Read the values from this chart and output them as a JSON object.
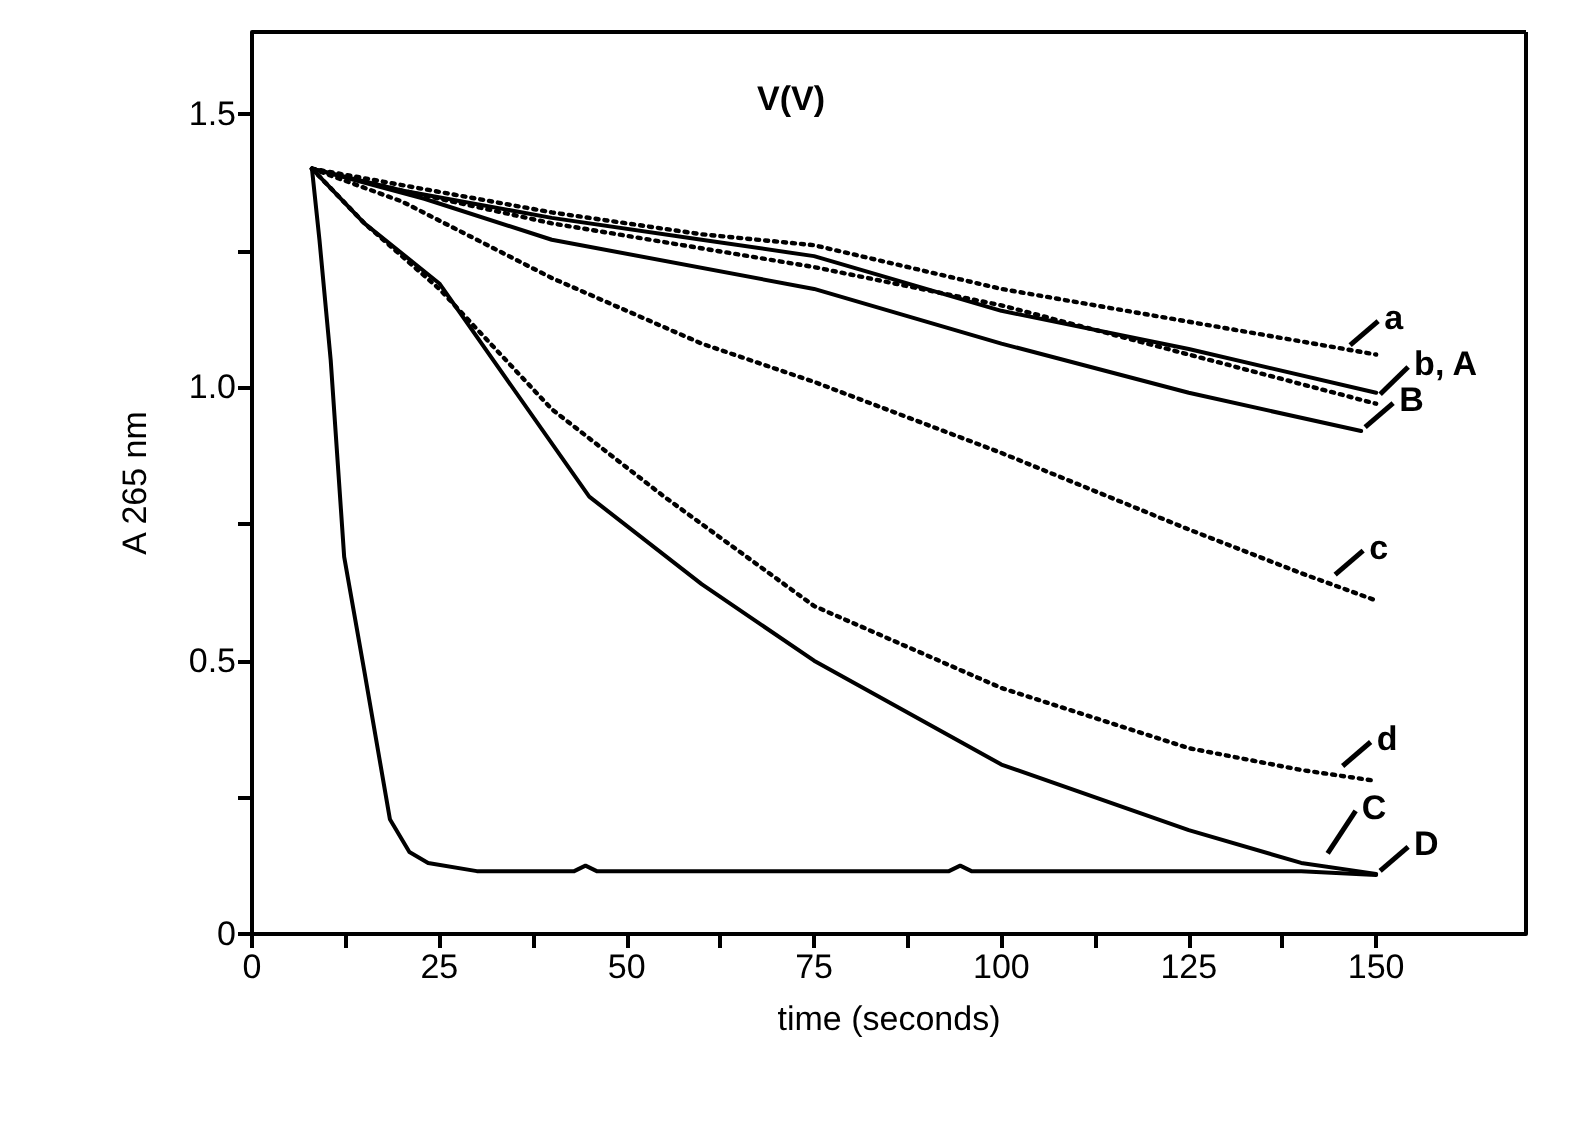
{
  "chart_data": {
    "type": "line",
    "title": "V(V)",
    "xlabel": "time (seconds)",
    "ylabel": "A 265 nm",
    "xlim": [
      0,
      170
    ],
    "xticks": [
      0,
      {
        "value": 12.5,
        "label": null
      },
      25,
      {
        "value": 37.5,
        "label": null
      },
      50,
      {
        "value": 62.5,
        "label": null
      },
      75,
      {
        "value": 87.5,
        "label": null
      },
      100,
      {
        "value": 112.5,
        "label": null
      },
      125,
      {
        "value": 137.5,
        "label": null
      },
      150
    ],
    "ylim": [
      0,
      1.65
    ],
    "yticks": [
      0,
      {
        "value": 0.25,
        "label": null
      },
      {
        "value": 0.5,
        "label": "0.5"
      },
      {
        "value": 0.75,
        "label": null
      },
      {
        "value": 1,
        "label": "1.0"
      },
      {
        "value": 1.25,
        "label": null
      },
      {
        "value": 1.5,
        "label": "1.5"
      }
    ],
    "grid": false,
    "marker": "none",
    "series": [
      {
        "color": "#000000",
        "line_style": "dotted",
        "x": [
          8,
          20,
          40,
          60,
          75,
          100,
          125,
          150
        ],
        "values": [
          1.4,
          1.37,
          1.32,
          1.28,
          1.26,
          1.18,
          1.12,
          1.06
        ]
      },
      {
        "color": "#000000",
        "line_style": "dotted",
        "x": [
          8,
          20,
          40,
          75,
          100,
          125,
          150
        ],
        "values": [
          1.4,
          1.36,
          1.3,
          1.22,
          1.15,
          1.06,
          0.97
        ]
      },
      {
        "color": "#000000",
        "line_style": "dotted",
        "x": [
          8,
          20,
          40,
          60,
          75,
          100,
          125,
          140,
          150
        ],
        "values": [
          1.4,
          1.34,
          1.2,
          1.08,
          1.01,
          0.88,
          0.74,
          0.66,
          0.61
        ]
      },
      {
        "color": "#000000",
        "line_style": "dotted",
        "x": [
          8,
          15,
          25,
          40,
          55,
          75,
          100,
          125,
          140,
          150
        ],
        "values": [
          1.4,
          1.3,
          1.18,
          0.96,
          0.8,
          0.6,
          0.45,
          0.34,
          0.3,
          0.28
        ]
      },
      {
        "color": "#000000",
        "line_style": "solid",
        "x": [
          8,
          20,
          40,
          60,
          75,
          100,
          125,
          150
        ],
        "values": [
          1.4,
          1.36,
          1.31,
          1.27,
          1.24,
          1.14,
          1.07,
          0.99
        ]
      },
      {
        "color": "#000000",
        "line_style": "solid",
        "x": [
          8,
          23,
          40,
          75,
          100,
          125,
          148
        ],
        "values": [
          1.4,
          1.345,
          1.27,
          1.18,
          1.08,
          0.99,
          0.92
        ]
      },
      {
        "color": "#000000",
        "line_style": "solid",
        "x": [
          8,
          15,
          25,
          45,
          60,
          75,
          100,
          125,
          140,
          150
        ],
        "values": [
          1.4,
          1.3,
          1.19,
          0.8,
          0.64,
          0.5,
          0.31,
          0.19,
          0.13,
          0.11
        ]
      },
      {
        "color": "#000000",
        "line_style": "solid",
        "x": [
          8,
          9,
          10.5,
          12.3,
          15,
          18.4,
          21,
          23.5,
          30,
          43,
          44.5,
          46,
          93,
          94.5,
          96,
          140,
          150
        ],
        "values": [
          1.4,
          1.27,
          1.05,
          0.69,
          0.48,
          0.21,
          0.15,
          0.13,
          0.115,
          0.115,
          0.125,
          0.115,
          0.115,
          0.125,
          0.115,
          0.115,
          0.108
        ]
      }
    ],
    "annotations": [
      {
        "text": "a",
        "x": 146,
        "y": 1.07
      },
      {
        "text": "b, A",
        "x": 150,
        "y": 0.98
      },
      {
        "text": "B",
        "x": 148,
        "y": 0.92
      },
      {
        "text": "c",
        "x": 144,
        "y": 0.65
      },
      {
        "text": "d",
        "x": 145,
        "y": 0.3
      },
      {
        "text": "C",
        "x": 143,
        "y": 0.14
      },
      {
        "text": "D",
        "x": 150,
        "y": 0.108
      }
    ]
  }
}
